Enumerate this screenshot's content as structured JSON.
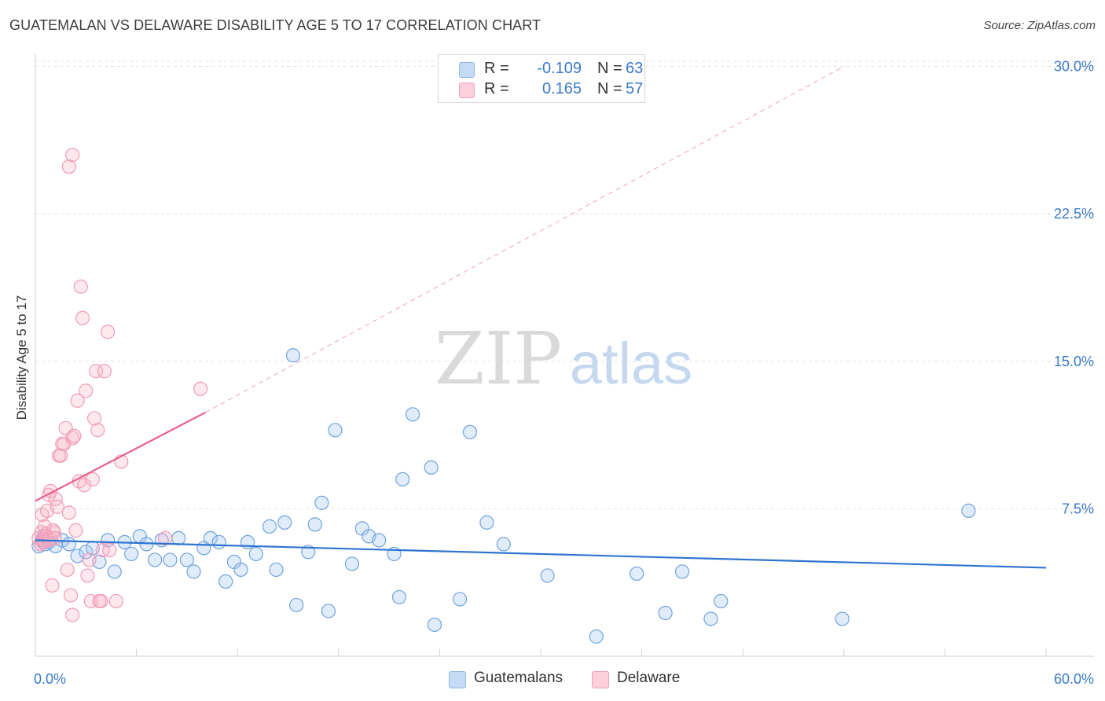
{
  "title": "GUATEMALAN VS DELAWARE DISABILITY AGE 5 TO 17 CORRELATION CHART",
  "source": "Source: ZipAtlas.com",
  "watermark": {
    "zip": "ZIP",
    "atlas": "atlas"
  },
  "legend": {
    "r_label": "R =",
    "n_label": "N =",
    "rows": [
      {
        "name": "Guatemalans",
        "r": "-0.109",
        "n": "63",
        "color": "#8fb8ea",
        "fill": "#c5daf5"
      },
      {
        "name": "Delaware",
        "r": "0.165",
        "n": "57",
        "color": "#f2a0b8",
        "fill": "#fbd0dc"
      }
    ]
  },
  "chart_data": {
    "type": "scatter",
    "title": "GUATEMALAN VS DELAWARE DISABILITY AGE 5 TO 17 CORRELATION CHART",
    "xlabel": "",
    "ylabel": "Disability Age 5 to 17",
    "xlim": [
      0,
      60
    ],
    "ylim": [
      0,
      30.5
    ],
    "x_tick_labels": [
      "0.0%",
      "60.0%"
    ],
    "y_ticks": [
      7.5,
      15.0,
      22.5,
      30.0
    ],
    "y_tick_labels": [
      "7.5%",
      "15.0%",
      "22.5%",
      "30.0%"
    ],
    "grid": true,
    "series": [
      {
        "name": "Guatemalans",
        "color": "#6fa3e0",
        "trend": {
          "x0": 0,
          "y0": 5.9,
          "x1": 60,
          "y1": 4.5,
          "style": "solid",
          "color": "#2f74d0"
        },
        "points": [
          [
            0.2,
            5.6
          ],
          [
            0.4,
            5.9
          ],
          [
            0.5,
            6.1
          ],
          [
            0.6,
            5.7
          ],
          [
            0.8,
            5.8
          ],
          [
            1.2,
            5.6
          ],
          [
            1.6,
            5.9
          ],
          [
            2.0,
            5.7
          ],
          [
            2.5,
            5.1
          ],
          [
            3.0,
            5.3
          ],
          [
            3.4,
            5.5
          ],
          [
            3.8,
            4.8
          ],
          [
            4.3,
            5.9
          ],
          [
            4.7,
            4.3
          ],
          [
            5.3,
            5.8
          ],
          [
            5.7,
            5.2
          ],
          [
            6.2,
            6.1
          ],
          [
            6.6,
            5.7
          ],
          [
            7.1,
            4.9
          ],
          [
            7.5,
            5.9
          ],
          [
            8.0,
            4.9
          ],
          [
            8.5,
            6.0
          ],
          [
            9.0,
            4.9
          ],
          [
            9.4,
            4.3
          ],
          [
            10.0,
            5.5
          ],
          [
            10.4,
            6.0
          ],
          [
            10.9,
            5.8
          ],
          [
            11.3,
            3.8
          ],
          [
            11.8,
            4.8
          ],
          [
            12.2,
            4.4
          ],
          [
            12.6,
            5.8
          ],
          [
            13.1,
            5.2
          ],
          [
            13.9,
            6.6
          ],
          [
            14.3,
            4.4
          ],
          [
            14.8,
            6.8
          ],
          [
            15.3,
            15.3
          ],
          [
            15.5,
            2.6
          ],
          [
            16.2,
            5.3
          ],
          [
            16.6,
            6.7
          ],
          [
            17.0,
            7.8
          ],
          [
            17.4,
            2.3
          ],
          [
            17.8,
            11.5
          ],
          [
            18.8,
            4.7
          ],
          [
            19.4,
            6.5
          ],
          [
            19.8,
            6.1
          ],
          [
            20.4,
            5.9
          ],
          [
            21.3,
            5.2
          ],
          [
            21.6,
            3.0
          ],
          [
            21.8,
            9.0
          ],
          [
            22.4,
            12.3
          ],
          [
            23.5,
            9.6
          ],
          [
            23.7,
            1.6
          ],
          [
            25.2,
            2.9
          ],
          [
            25.8,
            11.4
          ],
          [
            26.8,
            6.8
          ],
          [
            27.8,
            5.7
          ],
          [
            30.4,
            4.1
          ],
          [
            33.3,
            1.0
          ],
          [
            35.7,
            4.2
          ],
          [
            37.4,
            2.2
          ],
          [
            38.4,
            4.3
          ],
          [
            40.1,
            1.9
          ],
          [
            40.7,
            2.8
          ],
          [
            47.9,
            1.9
          ],
          [
            55.4,
            7.4
          ]
        ]
      },
      {
        "name": "Delaware",
        "color": "#f29bb5",
        "trend": {
          "x0": 0,
          "y0": 7.9,
          "x1": 10.1,
          "y1": 12.4,
          "style": "solid",
          "color": "#e8628a",
          "ext_x1": 48.0,
          "ext_y1": 30.0,
          "ext_style": "dashed"
        },
        "points": [
          [
            0.2,
            6.0
          ],
          [
            0.3,
            5.7
          ],
          [
            0.4,
            7.2
          ],
          [
            0.5,
            5.9
          ],
          [
            0.6,
            6.2
          ],
          [
            0.7,
            7.4
          ],
          [
            0.8,
            8.2
          ],
          [
            0.9,
            8.4
          ],
          [
            1.0,
            3.6
          ],
          [
            1.1,
            6.3
          ],
          [
            1.2,
            8.0
          ],
          [
            1.3,
            7.6
          ],
          [
            1.4,
            10.2
          ],
          [
            1.5,
            10.2
          ],
          [
            1.6,
            10.8
          ],
          [
            1.7,
            10.8
          ],
          [
            1.8,
            11.6
          ],
          [
            1.9,
            4.4
          ],
          [
            2.0,
            7.3
          ],
          [
            2.1,
            3.1
          ],
          [
            2.2,
            11.1
          ],
          [
            2.3,
            11.2
          ],
          [
            2.4,
            6.4
          ],
          [
            2.0,
            24.9
          ],
          [
            2.2,
            25.5
          ],
          [
            2.2,
            2.1
          ],
          [
            2.5,
            13.0
          ],
          [
            2.6,
            8.9
          ],
          [
            2.7,
            18.8
          ],
          [
            2.8,
            17.2
          ],
          [
            2.9,
            8.7
          ],
          [
            3.0,
            13.5
          ],
          [
            3.1,
            4.1
          ],
          [
            3.2,
            4.9
          ],
          [
            3.3,
            2.8
          ],
          [
            3.4,
            9.0
          ],
          [
            3.5,
            12.1
          ],
          [
            3.6,
            14.5
          ],
          [
            3.7,
            11.5
          ],
          [
            3.8,
            2.8
          ],
          [
            3.9,
            2.8
          ],
          [
            4.0,
            5.4
          ],
          [
            4.1,
            14.5
          ],
          [
            4.3,
            16.5
          ],
          [
            4.4,
            5.4
          ],
          [
            4.8,
            2.8
          ],
          [
            5.1,
            9.9
          ],
          [
            7.7,
            6.0
          ],
          [
            9.8,
            13.6
          ],
          [
            0.35,
            6.3
          ],
          [
            0.45,
            5.8
          ],
          [
            0.55,
            6.6
          ],
          [
            0.65,
            6.1
          ],
          [
            0.75,
            5.9
          ],
          [
            0.85,
            6.0
          ],
          [
            1.05,
            6.4
          ],
          [
            1.15,
            6.0
          ]
        ]
      }
    ]
  }
}
